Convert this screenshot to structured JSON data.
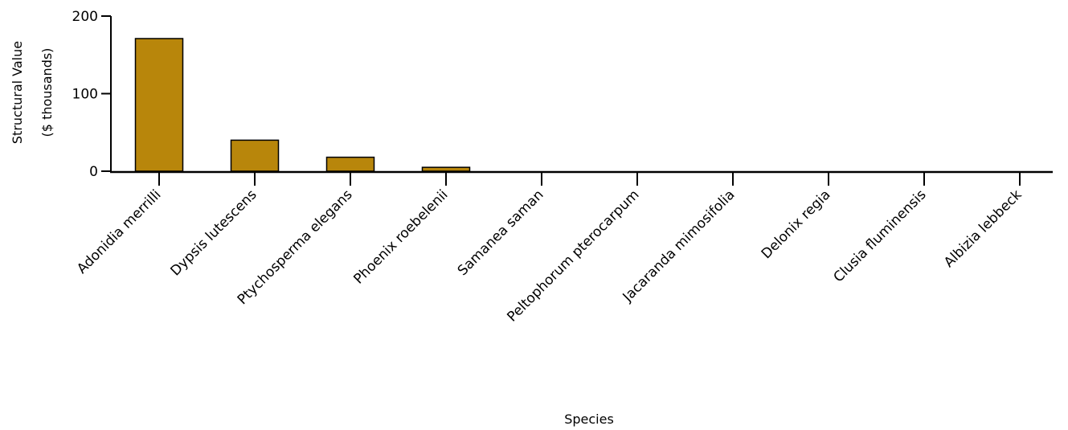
{
  "chart_data": {
    "type": "bar",
    "categories": [
      "Adonidia merrilli",
      "Dypsis lutescens",
      "Ptychosperma elegans",
      "Phoenix roebelenii",
      "Samanea saman",
      "Peltophorum pterocarpum",
      "Jacaranda mimosifolia",
      "Delonix regia",
      "Clusia fluminensis",
      "Albizia lebbeck"
    ],
    "values": [
      171,
      40,
      18,
      5,
      0,
      0,
      0,
      0,
      0,
      0
    ],
    "title": "",
    "xlabel": "Species",
    "ylabel_lines": [
      "Structural Value",
      "($  thousands)"
    ],
    "ylim": [
      0,
      200
    ],
    "yticks": [
      "0",
      "100",
      "200"
    ],
    "bar_color": "#b8860b",
    "grid": false,
    "legend": "none"
  }
}
